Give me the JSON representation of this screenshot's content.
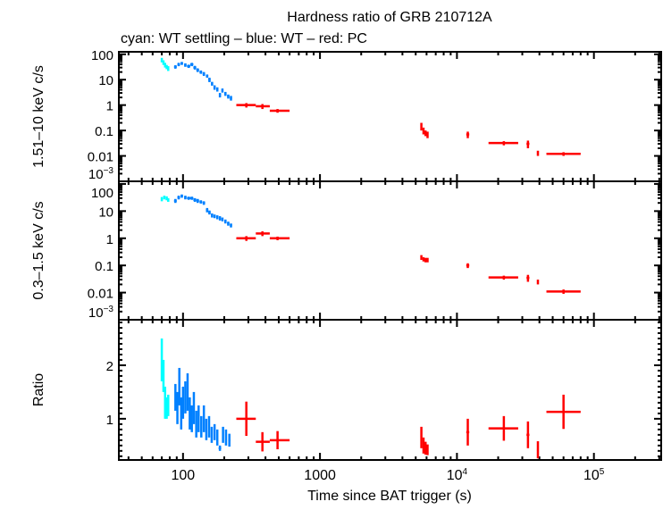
{
  "chart_data": {
    "type": "scatter",
    "title": "Hardness ratio of GRB 210712A",
    "subtitle": "cyan: WT settling – blue: WT – red: PC",
    "xlabel": "Time since BAT trigger (s)",
    "xscale": "log",
    "xlim": [
      34,
      310000
    ],
    "xticks": [
      {
        "v": 100,
        "label": "100"
      },
      {
        "v": 1000,
        "label": "1000"
      },
      {
        "v": 10000,
        "label": "10",
        "exp": "4"
      },
      {
        "v": 100000,
        "label": "10",
        "exp": "5"
      }
    ],
    "colors": {
      "wt_settling": "#00ffff",
      "wt": "#0080ff",
      "pc": "#ff0000"
    },
    "panels": [
      {
        "ylabel": "1.51–10 keV c/s",
        "yscale": "log",
        "ylim": [
          0.001,
          125
        ],
        "yticks": [
          {
            "v": 100,
            "label": "100"
          },
          {
            "v": 10,
            "label": "10"
          },
          {
            "v": 1,
            "label": "1"
          },
          {
            "v": 0.1,
            "label": "0.1"
          },
          {
            "v": 0.01,
            "label": "0.01"
          },
          {
            "v": 0.001,
            "label": "10",
            "exp": "−3"
          }
        ],
        "series": {
          "wt_settling": [
            [
              70,
              1,
              1,
              60,
              12,
              12
            ],
            [
              72,
              1,
              1,
              48,
              10,
              10
            ],
            [
              74,
              1,
              1,
              38,
              8,
              8
            ],
            [
              76,
              1,
              1,
              32,
              6,
              6
            ],
            [
              78,
              1,
              1,
              28,
              6,
              6
            ]
          ],
          "wt": [
            [
              88,
              2,
              2,
              32,
              5,
              5
            ],
            [
              93,
              2,
              2,
              40,
              6,
              6
            ],
            [
              98,
              2,
              2,
              44,
              6,
              6
            ],
            [
              104,
              2,
              2,
              38,
              6,
              6
            ],
            [
              110,
              3,
              3,
              34,
              5,
              5
            ],
            [
              116,
              3,
              3,
              40,
              6,
              6
            ],
            [
              122,
              3,
              3,
              30,
              5,
              5
            ],
            [
              128,
              3,
              3,
              24,
              4,
              4
            ],
            [
              135,
              3,
              3,
              20,
              3,
              3
            ],
            [
              142,
              3,
              3,
              17,
              3,
              3
            ],
            [
              150,
              3,
              3,
              14,
              2,
              2
            ],
            [
              156,
              3,
              3,
              10,
              2,
              2
            ],
            [
              163,
              3,
              3,
              7,
              1.2,
              1.2
            ],
            [
              170,
              3,
              3,
              5,
              1,
              1
            ],
            [
              178,
              3,
              3,
              4.2,
              0.8,
              0.8
            ],
            [
              186,
              3,
              3,
              2.5,
              0.5,
              0.5
            ],
            [
              194,
              3,
              3,
              3.8,
              0.7,
              0.7
            ],
            [
              204,
              4,
              4,
              2.8,
              0.5,
              0.5
            ],
            [
              214,
              4,
              4,
              2.2,
              0.4,
              0.4
            ],
            [
              224,
              4,
              4,
              1.9,
              0.4,
              0.4
            ]
          ],
          "pc": [
            [
              290,
              45,
              50,
              1.0,
              0.2,
              0.2
            ],
            [
              380,
              40,
              50,
              0.9,
              0.2,
              0.2
            ],
            [
              490,
              60,
              110,
              0.6,
              0.1,
              0.1
            ],
            [
              5500,
              60,
              60,
              0.15,
              0.05,
              0.05
            ],
            [
              5700,
              60,
              60,
              0.1,
              0.03,
              0.03
            ],
            [
              5900,
              80,
              80,
              0.08,
              0.02,
              0.02
            ],
            [
              6100,
              80,
              80,
              0.07,
              0.02,
              0.02
            ],
            [
              12000,
              300,
              300,
              0.07,
              0.02,
              0.02
            ],
            [
              22000,
              5000,
              6000,
              0.032,
              0.006,
              0.006
            ],
            [
              33000,
              800,
              800,
              0.03,
              0.01,
              0.01
            ],
            [
              39000,
              600,
              600,
              0.013,
              0.003,
              0.003
            ],
            [
              60000,
              15000,
              20000,
              0.012,
              0.002,
              0.002
            ]
          ]
        }
      },
      {
        "ylabel": "0.3–1.5 keV c/s",
        "yscale": "log",
        "ylim": [
          0.001,
          125
        ],
        "yticks": [
          {
            "v": 100,
            "label": "100"
          },
          {
            "v": 10,
            "label": "10"
          },
          {
            "v": 1,
            "label": "1"
          },
          {
            "v": 0.1,
            "label": "0.1"
          },
          {
            "v": 0.01,
            "label": "0.01"
          },
          {
            "v": 0.001,
            "label": "10",
            "exp": "−3"
          }
        ],
        "series": {
          "wt_settling": [
            [
              70,
              1,
              1,
              28,
              5,
              5
            ],
            [
              73,
              1,
              1,
              32,
              5,
              5
            ],
            [
              76,
              1,
              1,
              30,
              5,
              5
            ],
            [
              78,
              1,
              1,
              26,
              4,
              4
            ]
          ],
          "wt": [
            [
              88,
              2,
              2,
              24,
              4,
              4
            ],
            [
              93,
              2,
              2,
              32,
              5,
              5
            ],
            [
              98,
              2,
              2,
              36,
              5,
              5
            ],
            [
              104,
              2,
              2,
              32,
              5,
              5
            ],
            [
              110,
              3,
              3,
              30,
              4,
              4
            ],
            [
              116,
              3,
              3,
              30,
              4,
              4
            ],
            [
              122,
              3,
              3,
              26,
              4,
              4
            ],
            [
              128,
              3,
              3,
              24,
              4,
              4
            ],
            [
              135,
              3,
              3,
              22,
              3,
              3
            ],
            [
              142,
              3,
              3,
              20,
              3,
              3
            ],
            [
              150,
              3,
              3,
              11,
              2,
              2
            ],
            [
              156,
              3,
              3,
              9,
              1.5,
              1.5
            ],
            [
              163,
              3,
              3,
              7,
              1.2,
              1.2
            ],
            [
              170,
              3,
              3,
              6.5,
              1,
              1
            ],
            [
              178,
              3,
              3,
              6,
              1,
              1
            ],
            [
              186,
              3,
              3,
              5.5,
              1,
              1
            ],
            [
              194,
              3,
              3,
              5,
              0.8,
              0.8
            ],
            [
              204,
              4,
              4,
              4.2,
              0.7,
              0.7
            ],
            [
              214,
              4,
              4,
              3.5,
              0.6,
              0.6
            ],
            [
              224,
              4,
              4,
              3,
              0.5,
              0.5
            ]
          ],
          "pc": [
            [
              290,
              45,
              50,
              1.0,
              0.2,
              0.2
            ],
            [
              380,
              40,
              50,
              1.5,
              0.3,
              0.3
            ],
            [
              490,
              60,
              110,
              1.0,
              0.15,
              0.15
            ],
            [
              5500,
              60,
              60,
              0.2,
              0.04,
              0.04
            ],
            [
              5700,
              60,
              60,
              0.17,
              0.03,
              0.03
            ],
            [
              5900,
              80,
              80,
              0.16,
              0.03,
              0.03
            ],
            [
              6100,
              80,
              80,
              0.16,
              0.03,
              0.03
            ],
            [
              12000,
              300,
              300,
              0.1,
              0.02,
              0.02
            ],
            [
              22000,
              5000,
              6000,
              0.036,
              0.006,
              0.006
            ],
            [
              33000,
              800,
              800,
              0.035,
              0.01,
              0.01
            ],
            [
              39000,
              600,
              600,
              0.025,
              0.005,
              0.005
            ],
            [
              60000,
              15000,
              20000,
              0.011,
              0.002,
              0.002
            ]
          ]
        }
      },
      {
        "ylabel": "Ratio",
        "yscale": "linear",
        "ylim": [
          0.23,
          2.85
        ],
        "yticks": [
          {
            "v": 2,
            "label": "2"
          },
          {
            "v": 1,
            "label": "1"
          }
        ],
        "series": {
          "wt_settling": [
            [
              70,
              0.5,
              0.5,
              2.1,
              0.4,
              0.4
            ],
            [
              72,
              0.5,
              0.5,
              1.8,
              0.3,
              0.3
            ],
            [
              74,
              0.5,
              0.5,
              1.3,
              0.3,
              0.3
            ],
            [
              76,
              0.5,
              0.5,
              1.2,
              0.2,
              0.2
            ],
            [
              78,
              0.5,
              0.5,
              1.25,
              0.2,
              0.2
            ]
          ],
          "wt": [
            [
              88,
              1,
              1,
              1.4,
              0.25,
              0.25
            ],
            [
              91,
              1,
              1,
              1.2,
              0.3,
              0.3
            ],
            [
              94,
              1,
              1,
              1.6,
              0.35,
              0.35
            ],
            [
              97,
              1,
              1,
              1.1,
              0.3,
              0.3
            ],
            [
              100,
              1,
              1,
              1.3,
              0.3,
              0.3
            ],
            [
              104,
              1,
              1,
              1.4,
              0.3,
              0.3
            ],
            [
              108,
              1,
              1,
              1.5,
              0.35,
              0.35
            ],
            [
              112,
              1,
              1,
              1.1,
              0.3,
              0.3
            ],
            [
              116,
              1,
              1,
              1.0,
              0.25,
              0.25
            ],
            [
              120,
              1,
              1,
              1.2,
              0.3,
              0.3
            ],
            [
              125,
              1,
              1,
              0.9,
              0.25,
              0.25
            ],
            [
              130,
              1,
              1,
              1.0,
              0.25,
              0.25
            ],
            [
              136,
              1,
              1,
              0.85,
              0.2,
              0.2
            ],
            [
              142,
              1,
              1,
              1.0,
              0.25,
              0.25
            ],
            [
              148,
              1,
              1,
              0.8,
              0.2,
              0.2
            ],
            [
              155,
              1,
              1,
              0.85,
              0.2,
              0.2
            ],
            [
              162,
              1,
              1,
              0.7,
              0.15,
              0.15
            ],
            [
              170,
              1,
              1,
              0.75,
              0.15,
              0.15
            ],
            [
              178,
              1,
              1,
              0.65,
              0.15,
              0.15
            ],
            [
              186,
              4,
              4,
              0.45,
              0.05,
              0.05
            ],
            [
              196,
              2,
              2,
              0.7,
              0.15,
              0.15
            ],
            [
              206,
              2,
              2,
              0.65,
              0.15,
              0.15
            ],
            [
              218,
              4,
              4,
              0.6,
              0.12,
              0.12
            ]
          ],
          "pc": [
            [
              290,
              45,
              50,
              1.0,
              0.32,
              0.32
            ],
            [
              380,
              40,
              50,
              0.57,
              0.18,
              0.18
            ],
            [
              490,
              60,
              110,
              0.6,
              0.17,
              0.17
            ],
            [
              5500,
              60,
              60,
              0.65,
              0.2,
              0.2
            ],
            [
              5700,
              60,
              60,
              0.5,
              0.15,
              0.15
            ],
            [
              5900,
              80,
              80,
              0.45,
              0.12,
              0.12
            ],
            [
              6100,
              80,
              80,
              0.42,
              0.1,
              0.1
            ],
            [
              12000,
              300,
              300,
              0.75,
              0.25,
              0.25
            ],
            [
              22000,
              5000,
              6000,
              0.82,
              0.23,
              0.23
            ],
            [
              33000,
              800,
              800,
              0.7,
              0.25,
              0.25
            ],
            [
              39000,
              600,
              600,
              0.42,
              0.16,
              0.16
            ],
            [
              60000,
              15000,
              20000,
              1.13,
              0.32,
              0.32
            ]
          ]
        }
      }
    ]
  }
}
